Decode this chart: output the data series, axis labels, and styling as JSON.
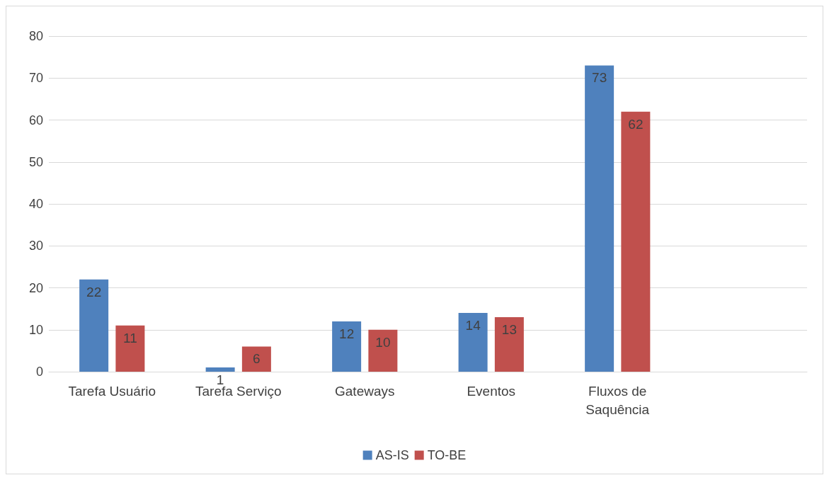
{
  "chart_data": {
    "type": "bar",
    "categories": [
      "Tarefa Usuário",
      "Tarefa Serviço",
      "Gateways",
      "Eventos",
      "Fluxos de\nSaquência",
      null
    ],
    "series": [
      {
        "name": "AS-IS",
        "color": "#4f81bd",
        "values": [
          22,
          1,
          12,
          14,
          73,
          null
        ]
      },
      {
        "name": "TO-BE",
        "color": "#c0504d",
        "values": [
          11,
          6,
          10,
          13,
          62,
          null
        ]
      }
    ],
    "ylim": [
      0,
      80
    ],
    "yticks": [
      0,
      10,
      20,
      30,
      40,
      50,
      60,
      70,
      80
    ],
    "grid": "y",
    "legend": "bottom",
    "data_labels": true
  }
}
